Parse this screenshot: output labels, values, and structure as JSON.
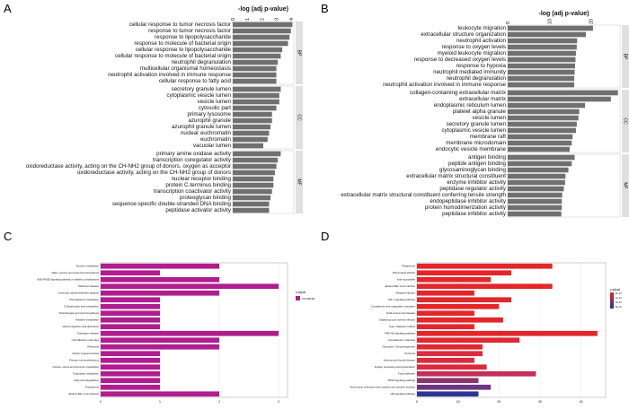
{
  "colors": {
    "bar_gray": "#707070",
    "strip_gray": "#e0e0e0",
    "kegg_c": "#b01d8e",
    "kegg_d_high": "#e3262a",
    "kegg_d_low": "#2c3592"
  },
  "chart_data": [
    {
      "panel": "A",
      "type": "bar",
      "orientation": "horizontal",
      "xlabel": "-log (adj p-value)",
      "xticks": [
        "0",
        "1",
        "2",
        "3",
        "4"
      ],
      "xlim": [
        0,
        4.2
      ],
      "groups": [
        {
          "label": "BP",
          "categories": [
            "cellular response to tumor necrosis factor",
            "response to tumor necrosis factor",
            "response to lipopolysaccharide",
            "response to molecule of bacterial origin",
            "cellular response to lipopolysaccharide",
            "cellular response to molecule of bacterial origin",
            "neutrophil degranulation",
            "multicellular organismal homeostasis",
            "neutrophil activation involved in immune response",
            "cellular response to fatty acid"
          ],
          "values": [
            4.1,
            4.0,
            3.9,
            3.8,
            3.4,
            3.3,
            3.1,
            3.0,
            3.0,
            3.0
          ]
        },
        {
          "label": "CC",
          "categories": [
            "secretory granule lumen",
            "cytoplasmic vesicle lumen",
            "vesicle lumen",
            "cytosolic part",
            "primary lysosome",
            "azurophil granule",
            "azurophil granule lumen",
            "nuclear euchromatin",
            "euchromatin",
            "vacuolar lumen"
          ],
          "values": [
            3.3,
            3.2,
            3.2,
            3.0,
            2.7,
            2.7,
            2.6,
            2.5,
            2.4,
            2.1
          ]
        },
        {
          "label": "MF",
          "categories": [
            "primary amine oxidase activity",
            "transcription coregulator activity",
            "oxidoreductase activity, acting on the CH-NH2 group of donors, oxygen as acceptor",
            "oxidoreductase activity, acting on the CH-NH2 group of donors",
            "nuclear receptor binding",
            "protein C-terminus binding",
            "transcription coactivator activity",
            "proteoglycan binding",
            "sequence-specific double-stranded DNA binding",
            "peptidase activator activity"
          ],
          "values": [
            3.3,
            3.1,
            3.0,
            2.9,
            2.8,
            2.8,
            2.7,
            2.6,
            2.5,
            2.5
          ]
        }
      ]
    },
    {
      "panel": "B",
      "type": "bar",
      "orientation": "horizontal",
      "xlabel": "-log (adj p-value)",
      "xticks": [
        "0",
        "10",
        "20"
      ],
      "xlim": [
        0,
        27
      ],
      "groups": [
        {
          "label": "BP",
          "categories": [
            "leukocyte migration",
            "extracellular structure organization",
            "neutrophil activation",
            "response to oxygen levels",
            "myeloid leukocyte migration",
            "response to decreased oxygen levels",
            "response to hypoxia",
            "neutrophil mediated immunity",
            "neutrophil degranulation",
            "neutrophil activation involved in immune response"
          ],
          "values": [
            20.5,
            18.8,
            16.7,
            16.6,
            16.4,
            16.3,
            16.2,
            16.1,
            16.0,
            16.0
          ]
        },
        {
          "label": "CC",
          "categories": [
            "collagen-containing extracellular matrix",
            "extracellular matrix",
            "endoplasmic reticulum lumen",
            "platelet alpha granule",
            "vesicle lumen",
            "secretory granule lumen",
            "cytoplasmic vesicle lumen",
            "membrane raft",
            "membrane microdomain",
            "endocytic vesicle membrane"
          ],
          "values": [
            26.5,
            24.8,
            18.6,
            17.2,
            17.0,
            16.6,
            16.4,
            15.6,
            15.4,
            14.9
          ]
        },
        {
          "label": "MF",
          "categories": [
            "antigen binding",
            "peptide antigen binding",
            "glycosaminoglycan binding",
            "extracellular matrix structural constituent",
            "enzyme inhibitor activity",
            "peptidase regulator activity",
            "extracellular matrix structural constituent conferring tensile strength",
            "endopeptidase inhibitor activity",
            "protein homodimerization activity",
            "peptidase inhibitor activity"
          ],
          "values": [
            16.1,
            15.4,
            14.6,
            13.9,
            13.8,
            13.5,
            13.1,
            13.0,
            13.0,
            12.9
          ]
        }
      ]
    },
    {
      "panel": "C",
      "type": "bar",
      "orientation": "horizontal",
      "legend_title": "p.adjust",
      "legend_value": "0.0105290",
      "xticks": [
        "0",
        "1",
        "2",
        "3"
      ],
      "xlim": [
        0,
        3.15
      ],
      "categories": [
        "Tyrosine metabolism",
        "Valine, leucine and isoleucine biosynthesis",
        "AGE-RAGE signaling pathway in diabetic complications",
        "Parkinson disease",
        "Leukocyte transendothelial migration",
        "Phenylalanine metabolism",
        "C-Dicarboxylic acid metabolism",
        "Pantothenate and CoA biosynthesis",
        "Histidine metabolism",
        "Vitamin digestion and absorption",
        "Huntington disease",
        "Cell adhesion molecules",
        "Ribosome",
        "African trypanosomiasis",
        "Primary immunodeficiency",
        "Glycine, serine and threonine metabolism",
        "Tryptophan metabolism",
        "Fatty acid degradation",
        "Proteasome",
        "Epstein-Barr virus infection"
      ],
      "values": [
        2,
        1,
        2,
        3,
        2,
        1,
        1,
        1,
        1,
        1,
        3,
        2,
        2,
        1,
        1,
        1,
        1,
        1,
        1,
        2
      ]
    },
    {
      "panel": "D",
      "type": "bar",
      "orientation": "horizontal",
      "legend_title": "p.adjust",
      "legend_ticks": [
        "2e-10",
        "4e-10",
        "6e-10",
        "8e-10"
      ],
      "xticks": [
        "0",
        "10",
        "20",
        "30",
        "40"
      ],
      "xlim": [
        0,
        46
      ],
      "categories": [
        "Phagosome",
        "Rheumatoid arthritis",
        "Viral myocarditis",
        "Epstein-Barr virus infection",
        "Allograft rejection",
        "HIF-1 signaling pathway",
        "Complement and coagulation cascades",
        "Graft-versus-host disease",
        "Staphylococcus aureus infection",
        "Type I diabetes mellitus",
        "PI3K-Akt signaling pathway",
        "Cell adhesion molecules",
        "Glycolysis / Gluconeogenesis",
        "Pertussis",
        "Autoimmune thyroid disease",
        "Antigen processing and presentation",
        "Focal adhesion",
        "PPAR signaling pathway",
        "Viral protein interaction with cytokine and cytokine receptor",
        "p53 signaling pathway"
      ],
      "values": [
        33,
        23,
        18,
        33,
        14,
        23,
        20,
        14,
        21,
        14,
        44,
        25,
        16,
        16,
        14,
        17,
        29,
        15,
        18,
        15
      ]
    }
  ],
  "panels": {
    "a": "A",
    "b": "B",
    "c": "C",
    "d": "D"
  }
}
